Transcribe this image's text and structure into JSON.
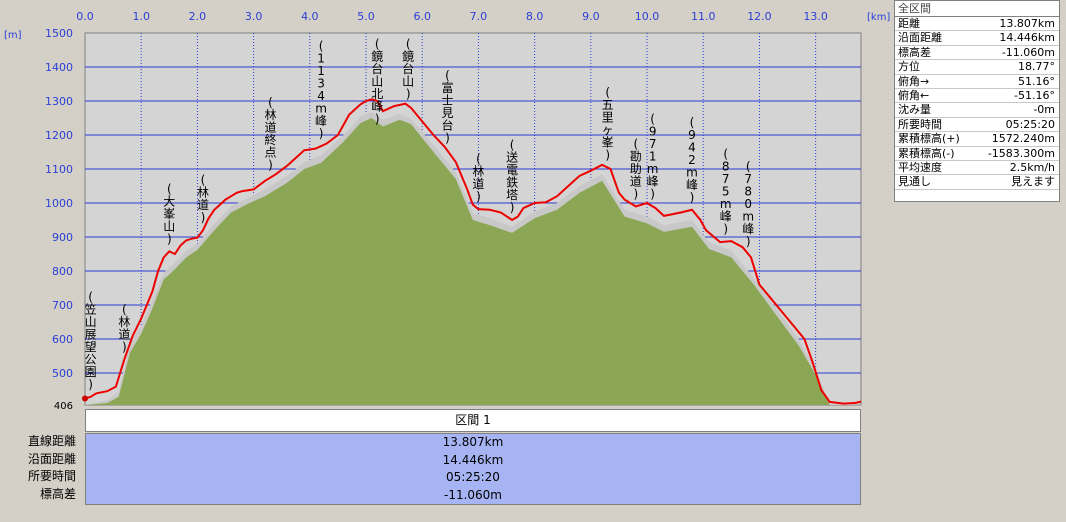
{
  "chart_data": {
    "type": "area",
    "x_unit": "[km]",
    "y_unit": "[m]",
    "xlim": [
      0,
      13.807
    ],
    "ylim": [
      406,
      1500
    ],
    "x_ticks": [
      {
        "v": 0,
        "label": "0.0"
      },
      {
        "v": 1,
        "label": "1.0"
      },
      {
        "v": 2,
        "label": "2.0"
      },
      {
        "v": 3,
        "label": "3.0"
      },
      {
        "v": 4,
        "label": "4.0"
      },
      {
        "v": 5,
        "label": "5.0"
      },
      {
        "v": 6,
        "label": "6.0"
      },
      {
        "v": 7,
        "label": "7.0"
      },
      {
        "v": 8,
        "label": "8.0"
      },
      {
        "v": 9,
        "label": "9.0"
      },
      {
        "v": 10,
        "label": "10.0"
      },
      {
        "v": 11,
        "label": "11.0"
      },
      {
        "v": 12,
        "label": "12.0"
      },
      {
        "v": 13,
        "label": "13.0"
      }
    ],
    "y_ticks": [
      {
        "v": 406,
        "label": "406"
      },
      {
        "v": 500,
        "label": "500"
      },
      {
        "v": 600,
        "label": "600"
      },
      {
        "v": 700,
        "label": "700"
      },
      {
        "v": 800,
        "label": "800"
      },
      {
        "v": 900,
        "label": "900"
      },
      {
        "v": 1000,
        "label": "1000"
      },
      {
        "v": 1100,
        "label": "1100"
      },
      {
        "v": 1200,
        "label": "1200"
      },
      {
        "v": 1300,
        "label": "1300"
      },
      {
        "v": 1400,
        "label": "1400"
      },
      {
        "v": 1500,
        "label": "1500"
      }
    ],
    "series": [
      {
        "color": "#ee0000",
        "points": [
          [
            0,
            425
          ],
          [
            0.1,
            430
          ],
          [
            0.2,
            440
          ],
          [
            0.4,
            447
          ],
          [
            0.55,
            460
          ],
          [
            0.7,
            540
          ],
          [
            0.85,
            610
          ],
          [
            1.0,
            660
          ],
          [
            1.1,
            700
          ],
          [
            1.2,
            740
          ],
          [
            1.3,
            800
          ],
          [
            1.4,
            840
          ],
          [
            1.5,
            858
          ],
          [
            1.6,
            850
          ],
          [
            1.7,
            875
          ],
          [
            1.8,
            890
          ],
          [
            1.9,
            895
          ],
          [
            2.0,
            898
          ],
          [
            2.1,
            920
          ],
          [
            2.2,
            955
          ],
          [
            2.3,
            980
          ],
          [
            2.4,
            995
          ],
          [
            2.5,
            1010
          ],
          [
            2.6,
            1020
          ],
          [
            2.7,
            1030
          ],
          [
            2.8,
            1035
          ],
          [
            3.0,
            1040
          ],
          [
            3.2,
            1065
          ],
          [
            3.4,
            1085
          ],
          [
            3.6,
            1110
          ],
          [
            3.8,
            1140
          ],
          [
            3.9,
            1155
          ],
          [
            4.1,
            1160
          ],
          [
            4.3,
            1175
          ],
          [
            4.5,
            1200
          ],
          [
            4.7,
            1260
          ],
          [
            4.9,
            1290
          ],
          [
            5.0,
            1300
          ],
          [
            5.1,
            1305
          ],
          [
            5.2,
            1300
          ],
          [
            5.3,
            1270
          ],
          [
            5.5,
            1285
          ],
          [
            5.7,
            1292
          ],
          [
            5.8,
            1280
          ],
          [
            6.0,
            1240
          ],
          [
            6.2,
            1200
          ],
          [
            6.4,
            1165
          ],
          [
            6.6,
            1120
          ],
          [
            6.8,
            1040
          ],
          [
            6.9,
            995
          ],
          [
            7.0,
            982
          ],
          [
            7.2,
            980
          ],
          [
            7.4,
            972
          ],
          [
            7.6,
            950
          ],
          [
            7.7,
            960
          ],
          [
            7.8,
            985
          ],
          [
            8.0,
            1000
          ],
          [
            8.2,
            1002
          ],
          [
            8.4,
            1020
          ],
          [
            8.6,
            1050
          ],
          [
            8.8,
            1080
          ],
          [
            9.0,
            1095
          ],
          [
            9.2,
            1112
          ],
          [
            9.35,
            1100
          ],
          [
            9.5,
            1030
          ],
          [
            9.6,
            1010
          ],
          [
            9.8,
            990
          ],
          [
            10.0,
            1000
          ],
          [
            10.15,
            985
          ],
          [
            10.3,
            962
          ],
          [
            10.6,
            972
          ],
          [
            10.8,
            980
          ],
          [
            10.95,
            950
          ],
          [
            11.05,
            920
          ],
          [
            11.3,
            885
          ],
          [
            11.5,
            888
          ],
          [
            11.7,
            870
          ],
          [
            11.85,
            840
          ],
          [
            12.0,
            760
          ],
          [
            12.2,
            720
          ],
          [
            12.4,
            680
          ],
          [
            12.6,
            640
          ],
          [
            12.8,
            600
          ],
          [
            12.95,
            530
          ],
          [
            13.1,
            450
          ],
          [
            13.25,
            415
          ],
          [
            13.5,
            410
          ],
          [
            13.7,
            412
          ],
          [
            13.807,
            416
          ]
        ]
      },
      {
        "color": "#c8c8c8",
        "points": [
          [
            0,
            406
          ],
          [
            0.4,
            420
          ],
          [
            0.6,
            445
          ],
          [
            0.8,
            590
          ],
          [
            1.0,
            640
          ],
          [
            1.2,
            715
          ],
          [
            1.4,
            795
          ],
          [
            1.6,
            825
          ],
          [
            1.8,
            860
          ],
          [
            2.0,
            880
          ],
          [
            2.3,
            940
          ],
          [
            2.6,
            990
          ],
          [
            2.9,
            1015
          ],
          [
            3.2,
            1040
          ],
          [
            3.6,
            1080
          ],
          [
            3.9,
            1120
          ],
          [
            4.2,
            1140
          ],
          [
            4.6,
            1200
          ],
          [
            4.9,
            1255
          ],
          [
            5.1,
            1268
          ],
          [
            5.3,
            1245
          ],
          [
            5.6,
            1262
          ],
          [
            5.8,
            1248
          ],
          [
            6.2,
            1170
          ],
          [
            6.6,
            1090
          ],
          [
            6.9,
            970
          ],
          [
            7.2,
            955
          ],
          [
            7.6,
            930
          ],
          [
            8.0,
            975
          ],
          [
            8.4,
            1000
          ],
          [
            8.8,
            1050
          ],
          [
            9.2,
            1085
          ],
          [
            9.6,
            980
          ],
          [
            10.0,
            960
          ],
          [
            10.3,
            935
          ],
          [
            10.8,
            950
          ],
          [
            11.1,
            885
          ],
          [
            11.5,
            860
          ],
          [
            11.9,
            780
          ],
          [
            12.3,
            690
          ],
          [
            12.7,
            600
          ],
          [
            13.0,
            510
          ],
          [
            13.25,
            410
          ],
          [
            13.807,
            406
          ]
        ]
      },
      {
        "color": "#8ba655",
        "points": [
          [
            0,
            406
          ],
          [
            0.4,
            412
          ],
          [
            0.6,
            430
          ],
          [
            0.8,
            560
          ],
          [
            1.0,
            615
          ],
          [
            1.2,
            690
          ],
          [
            1.4,
            775
          ],
          [
            1.6,
            805
          ],
          [
            1.8,
            840
          ],
          [
            2.0,
            862
          ],
          [
            2.3,
            920
          ],
          [
            2.6,
            972
          ],
          [
            2.9,
            998
          ],
          [
            3.2,
            1020
          ],
          [
            3.6,
            1060
          ],
          [
            3.9,
            1100
          ],
          [
            4.2,
            1118
          ],
          [
            4.6,
            1180
          ],
          [
            4.9,
            1235
          ],
          [
            5.1,
            1250
          ],
          [
            5.3,
            1225
          ],
          [
            5.6,
            1245
          ],
          [
            5.8,
            1232
          ],
          [
            6.2,
            1150
          ],
          [
            6.6,
            1070
          ],
          [
            6.9,
            950
          ],
          [
            7.2,
            935
          ],
          [
            7.6,
            912
          ],
          [
            8.0,
            955
          ],
          [
            8.4,
            980
          ],
          [
            8.8,
            1030
          ],
          [
            9.2,
            1065
          ],
          [
            9.6,
            960
          ],
          [
            10.0,
            940
          ],
          [
            10.3,
            915
          ],
          [
            10.8,
            930
          ],
          [
            11.1,
            865
          ],
          [
            11.5,
            840
          ],
          [
            11.9,
            760
          ],
          [
            12.3,
            670
          ],
          [
            12.7,
            580
          ],
          [
            13.0,
            495
          ],
          [
            13.25,
            406
          ],
          [
            13.807,
            406
          ]
        ]
      }
    ],
    "waypoints": [
      {
        "x": 0.1,
        "label": "(笠山展望公園)"
      },
      {
        "x": 0.7,
        "label": "(林道)"
      },
      {
        "x": 1.5,
        "label": "(大峯山)"
      },
      {
        "x": 2.1,
        "label": "(林道)"
      },
      {
        "x": 3.3,
        "label": "(林道終点)"
      },
      {
        "x": 4.2,
        "label": "(1134m峰)"
      },
      {
        "x": 5.2,
        "label": "(鏡台山北峰)"
      },
      {
        "x": 5.75,
        "label": "(鏡台山)"
      },
      {
        "x": 6.45,
        "label": "(富士見台)"
      },
      {
        "x": 7.0,
        "label": "(林道)"
      },
      {
        "x": 7.6,
        "label": "(送電鉄塔)"
      },
      {
        "x": 9.3,
        "label": "(五里ヶ峯)"
      },
      {
        "x": 9.8,
        "label": "(勘助道)"
      },
      {
        "x": 10.1,
        "label": "(971m峰)"
      },
      {
        "x": 10.8,
        "label": "(942m峰)"
      },
      {
        "x": 11.4,
        "label": "(875m峰)"
      },
      {
        "x": 11.8,
        "label": "(780m峰)"
      }
    ]
  },
  "info": {
    "title": "全区間",
    "rows": [
      {
        "label": "距離",
        "value": "13.807km"
      },
      {
        "label": "沿面距離",
        "value": "14.446km"
      },
      {
        "label": "標高差",
        "value": "-11.060m"
      },
      {
        "label": "方位",
        "value": "18.77°"
      },
      {
        "label": "俯角→",
        "value": "51.16°"
      },
      {
        "label": "俯角←",
        "value": "-51.16°"
      },
      {
        "label": "沈み量",
        "value": "-0m"
      },
      {
        "label": "所要時間",
        "value": "05:25:20"
      },
      {
        "label": "累積標高(+)",
        "value": "1572.240m"
      },
      {
        "label": "累積標高(-)",
        "value": "-1583.300m"
      },
      {
        "label": "平均速度",
        "value": "2.5km/h"
      },
      {
        "label": "見通し",
        "value": "見えます"
      }
    ]
  },
  "segment": {
    "header": "区間 1",
    "rows": [
      {
        "label": "直線距離",
        "value": "13.807km"
      },
      {
        "label": "沿面距離",
        "value": "14.446km"
      },
      {
        "label": "所要時間",
        "value": "05:25:20"
      },
      {
        "label": "標高差",
        "value": "-11.060m"
      }
    ]
  }
}
